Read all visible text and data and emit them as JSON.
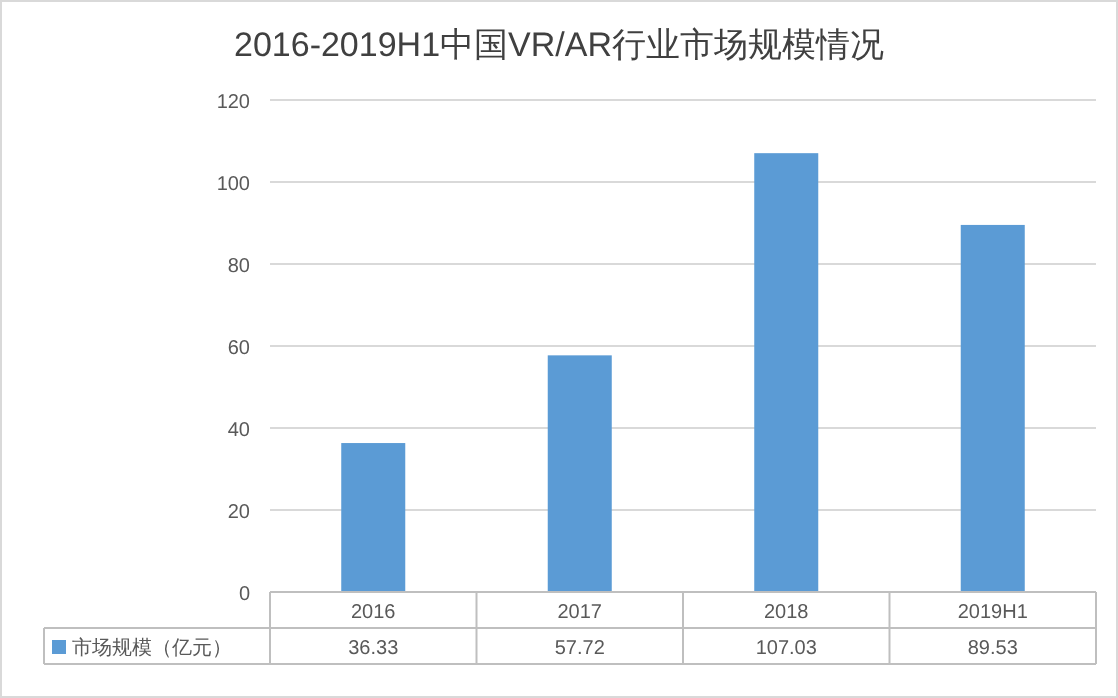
{
  "chart_data": {
    "type": "bar",
    "title": "2016-2019H1中国VR/AR行业市场规模情况",
    "categories": [
      "2016",
      "2017",
      "2018",
      "2019H1"
    ],
    "series": [
      {
        "name": "市场规模（亿元）",
        "color": "#5b9bd5",
        "values": [
          36.33,
          57.72,
          107.03,
          89.53
        ]
      }
    ],
    "ylim": [
      0,
      120
    ],
    "yticks": [
      0,
      20,
      40,
      60,
      80,
      100,
      120
    ],
    "grid": "y",
    "legend": "bottom",
    "data_labels": true
  }
}
